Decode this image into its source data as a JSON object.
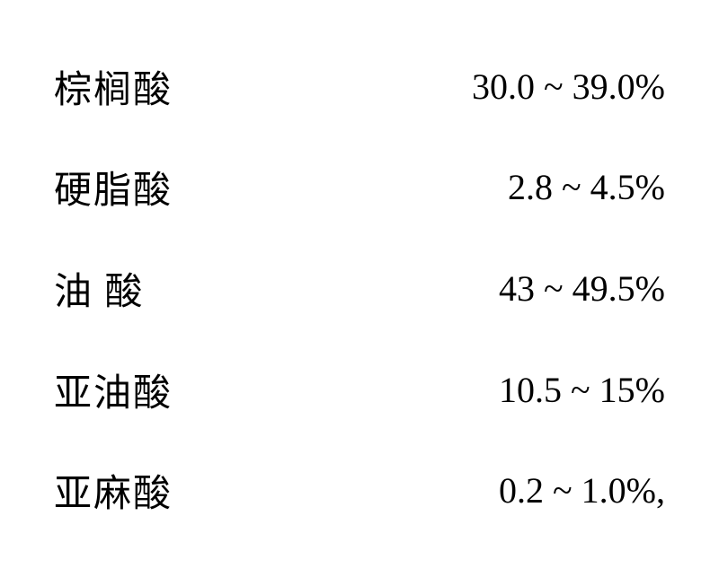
{
  "table": {
    "background_color": "#ffffff",
    "text_color": "#000000",
    "label_fontsize": 42,
    "value_fontsize": 40,
    "rows": [
      {
        "label": "棕榈酸",
        "value": "30.0 ~ 39.0%",
        "spaced": false
      },
      {
        "label": "硬脂酸",
        "value": "2.8 ~ 4.5%",
        "spaced": false
      },
      {
        "label": "油 酸",
        "value": "43 ~ 49.5%",
        "spaced": false
      },
      {
        "label": "亚油酸",
        "value": "10.5 ~ 15%",
        "spaced": false
      },
      {
        "label": "亚麻酸",
        "value": "0.2 ~ 1.0%,",
        "spaced": false
      }
    ]
  }
}
